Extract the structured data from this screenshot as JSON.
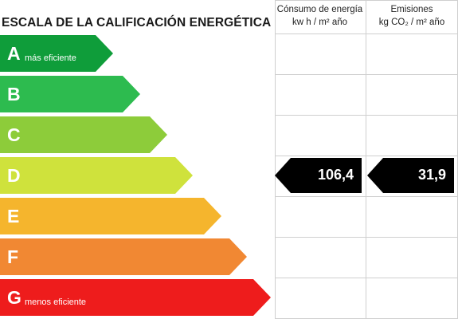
{
  "header": {
    "scale_title": "ESCALA DE LA CALIFICACIÓN ENERGÉTICA",
    "consumption_title": "Cónsumo de energía",
    "consumption_unit": "kw h / m² año",
    "emissions_title": "Emisiones",
    "emissions_unit": "kg CO₂ / m² año"
  },
  "bands": [
    {
      "letter": "A",
      "desc": "más eficiente",
      "color": "#0f9d3a"
    },
    {
      "letter": "B",
      "desc": "",
      "color": "#2dbb4f"
    },
    {
      "letter": "C",
      "desc": "",
      "color": "#8dcc3a"
    },
    {
      "letter": "D",
      "desc": "",
      "color": "#cfe23c"
    },
    {
      "letter": "E",
      "desc": "",
      "color": "#f5b52d"
    },
    {
      "letter": "F",
      "desc": "",
      "color": "#f18833"
    },
    {
      "letter": "G",
      "desc": "menos eficiente",
      "color": "#ee1c1c"
    }
  ],
  "rating": {
    "band": "D",
    "consumption_value": "106,4",
    "emissions_value": "31,9",
    "tag_color": "#000000"
  },
  "grid_color": "#cfcfcf"
}
